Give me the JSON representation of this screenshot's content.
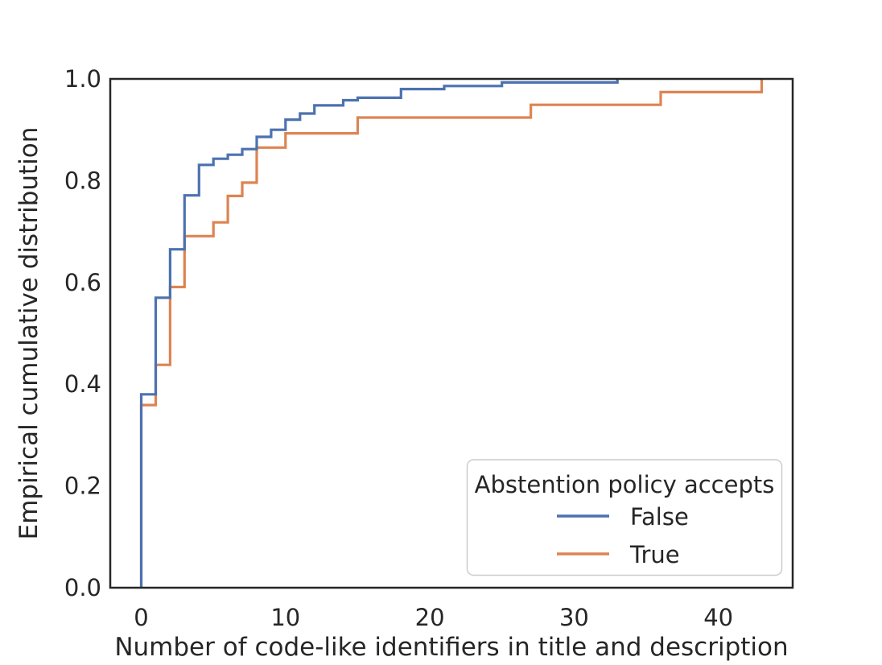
{
  "figure": {
    "xlabel": "Number of code-like identifiers in title and description",
    "ylabel": "Empirical cumulative distribution",
    "colors": {
      "false_line": "#4c72b0",
      "true_line": "#dd8452",
      "spine": "#262626",
      "text": "#262626",
      "legend_border": "#cccccc",
      "background": "#ffffff"
    }
  },
  "legend": {
    "title": "Abstention policy accepts",
    "entries": [
      {
        "label": "False",
        "color": "#4c72b0"
      },
      {
        "label": "True",
        "color": "#dd8452"
      }
    ]
  },
  "chart_data": {
    "type": "line",
    "subtype": "ecdf-steps-post",
    "title": "",
    "xlabel": "Number of code-like identifiers in title and description",
    "ylabel": "Empirical cumulative distribution",
    "xlim": [
      -2.15,
      45.15
    ],
    "ylim": [
      0,
      1
    ],
    "grid": false,
    "legend_position": "lower right",
    "xticks": [
      {
        "v": 0,
        "label": "0"
      },
      {
        "v": 10,
        "label": "10"
      },
      {
        "v": 20,
        "label": "20"
      },
      {
        "v": 30,
        "label": "30"
      },
      {
        "v": 40,
        "label": "40"
      }
    ],
    "yticks": [
      {
        "v": 1.0,
        "label": "1.0"
      },
      {
        "v": 0.8,
        "label": "0.8"
      },
      {
        "v": 0.6,
        "label": "0.6"
      },
      {
        "v": 0.4,
        "label": "0.4"
      },
      {
        "v": 0.2,
        "label": "0.2"
      },
      {
        "v": 0.0,
        "label": "0.0"
      }
    ],
    "series": [
      {
        "name": "False",
        "color": "#4c72b0",
        "points": [
          [
            0,
            0.38
          ],
          [
            1,
            0.57
          ],
          [
            2,
            0.665
          ],
          [
            3,
            0.771
          ],
          [
            4,
            0.831
          ],
          [
            5,
            0.843
          ],
          [
            6,
            0.851
          ],
          [
            7,
            0.862
          ],
          [
            8,
            0.886
          ],
          [
            9,
            0.9
          ],
          [
            10,
            0.92
          ],
          [
            11,
            0.932
          ],
          [
            12,
            0.948
          ],
          [
            14,
            0.958
          ],
          [
            15,
            0.963
          ],
          [
            18,
            0.98
          ],
          [
            21,
            0.986
          ],
          [
            25,
            0.993
          ],
          [
            33,
            1.0
          ]
        ]
      },
      {
        "name": "True",
        "color": "#dd8452",
        "points": [
          [
            0,
            0.359
          ],
          [
            1,
            0.438
          ],
          [
            2,
            0.591
          ],
          [
            3,
            0.691
          ],
          [
            5,
            0.718
          ],
          [
            6,
            0.77
          ],
          [
            7,
            0.796
          ],
          [
            8,
            0.865
          ],
          [
            10,
            0.893
          ],
          [
            15,
            0.924
          ],
          [
            27,
            0.949
          ],
          [
            36,
            0.974
          ],
          [
            43,
            1.0
          ]
        ]
      }
    ]
  }
}
